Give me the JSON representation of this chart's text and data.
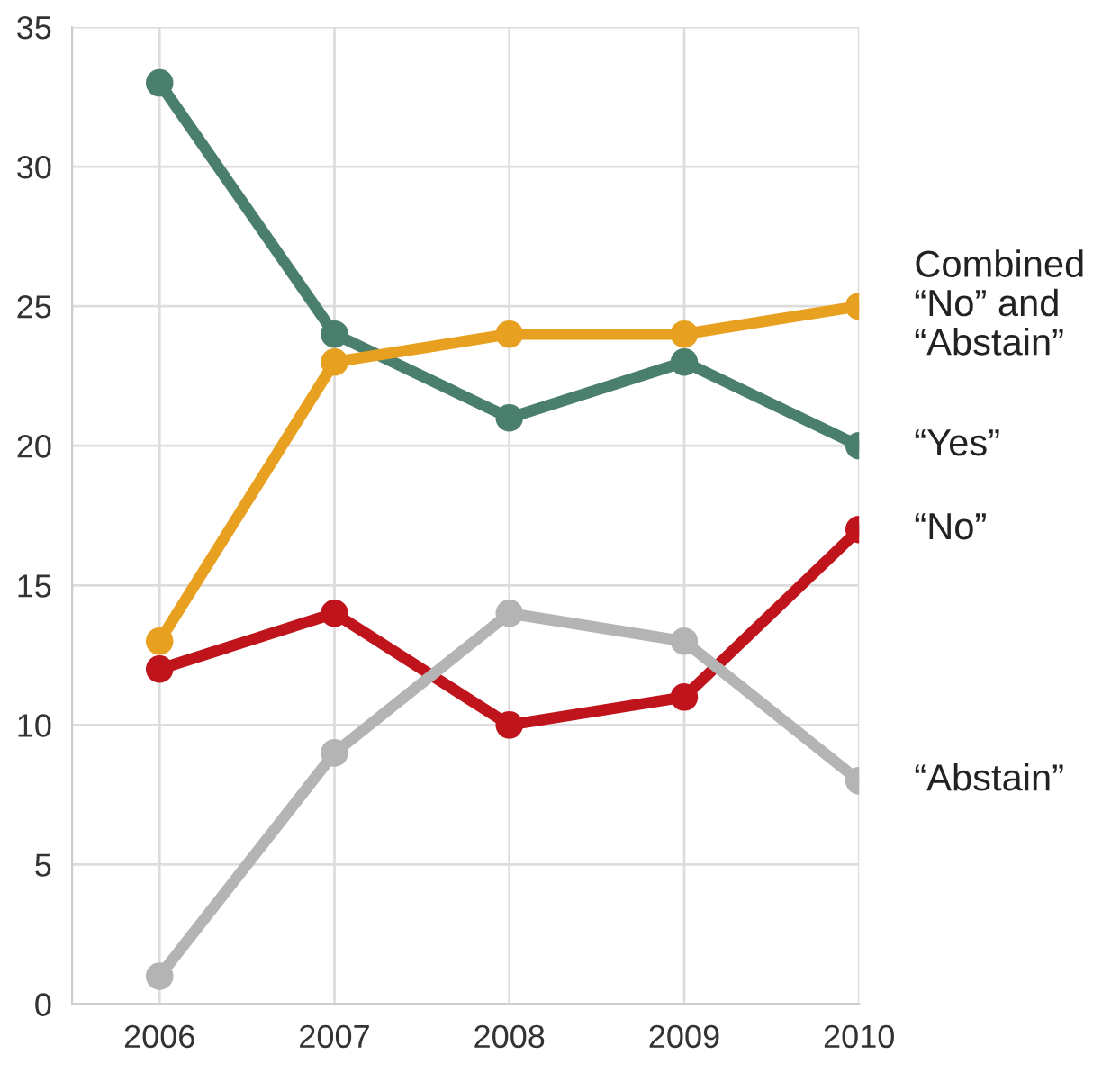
{
  "chart_data": {
    "type": "line",
    "categories": [
      "2006",
      "2007",
      "2008",
      "2009",
      "2010"
    ],
    "series": [
      {
        "name": "“Yes”",
        "color": "#4a7f6e",
        "values": [
          33,
          24,
          21,
          23,
          20
        ]
      },
      {
        "name": "Combined\n“No” and\n“Abstain”",
        "color": "#e8a020",
        "values": [
          13,
          23,
          24,
          24,
          25
        ]
      },
      {
        "name": "“No”",
        "color": "#c0141c",
        "values": [
          12,
          14,
          10,
          11,
          17
        ]
      },
      {
        "name": "“Abstain”",
        "color": "#b4b4b4",
        "values": [
          1,
          9,
          14,
          13,
          8
        ]
      }
    ],
    "ylim": [
      0,
      35
    ],
    "yticks": [
      0,
      5,
      10,
      15,
      20,
      25,
      30,
      35
    ],
    "grid": true,
    "legend": false,
    "marker": "circle",
    "line_style": "solid"
  }
}
